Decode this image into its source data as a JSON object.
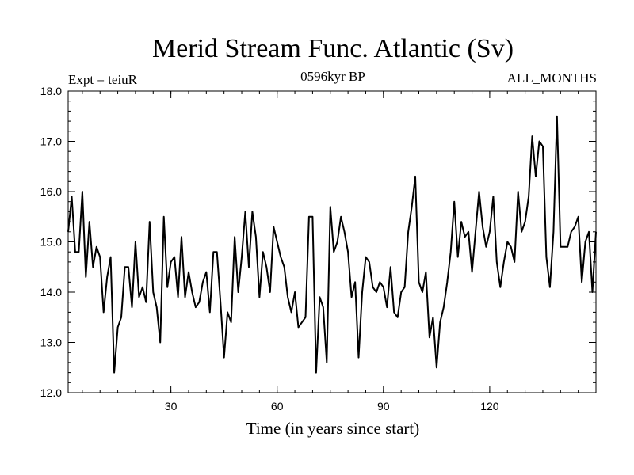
{
  "chart_data": {
    "type": "line",
    "title": "Merid Stream Func. Atlantic (Sv)",
    "subtitle_left": "Expt = teiuR",
    "subtitle_center": "0596kyr BP",
    "subtitle_right": "ALL_MONTHS",
    "xlabel": "Time (in years since start)",
    "ylabel": "",
    "xlim": [
      1,
      150
    ],
    "ylim": [
      12.0,
      18.0
    ],
    "x_ticks": [
      30,
      60,
      90,
      120
    ],
    "x_tick_labels": [
      "30",
      "60",
      "90",
      "120"
    ],
    "y_ticks": [
      12.0,
      13.0,
      14.0,
      15.0,
      16.0,
      17.0,
      18.0
    ],
    "y_tick_labels": [
      "12.0",
      "13.0",
      "14.0",
      "15.0",
      "16.0",
      "17.0",
      "18.0"
    ],
    "grid": false,
    "series": [
      {
        "name": "Merid Stream Func. Atlantic",
        "x_start": 1,
        "x_step": 1,
        "values": [
          15.2,
          15.9,
          14.8,
          14.8,
          16.0,
          14.3,
          15.4,
          14.5,
          14.9,
          14.7,
          13.6,
          14.3,
          14.7,
          12.4,
          13.3,
          13.5,
          14.5,
          14.5,
          13.7,
          15.0,
          13.9,
          14.1,
          13.8,
          15.4,
          14.0,
          13.7,
          13.0,
          15.5,
          14.1,
          14.6,
          14.7,
          13.9,
          15.1,
          13.9,
          14.4,
          14.0,
          13.7,
          13.8,
          14.2,
          14.4,
          13.6,
          14.8,
          14.8,
          13.8,
          12.7,
          13.6,
          13.4,
          15.1,
          14.0,
          14.7,
          15.6,
          14.5,
          15.6,
          15.1,
          13.9,
          14.8,
          14.5,
          14.0,
          15.3,
          15.0,
          14.7,
          14.5,
          13.9,
          13.6,
          14.0,
          13.3,
          13.4,
          13.5,
          15.5,
          15.5,
          12.4,
          13.9,
          13.7,
          12.6,
          15.7,
          14.8,
          15.0,
          15.5,
          15.2,
          14.8,
          13.9,
          14.2,
          12.7,
          14.0,
          14.7,
          14.6,
          14.1,
          14.0,
          14.2,
          14.1,
          13.7,
          14.5,
          13.6,
          13.5,
          14.0,
          14.1,
          15.2,
          15.7,
          16.3,
          14.2,
          14.0,
          14.4,
          13.1,
          13.5,
          12.5,
          13.4,
          13.7,
          14.2,
          14.8,
          15.8,
          14.7,
          15.4,
          15.1,
          15.2,
          14.4,
          15.2,
          16.0,
          15.3,
          14.9,
          15.2,
          15.9,
          14.6,
          14.1,
          14.6,
          15.0,
          14.9,
          14.6,
          16.0,
          15.2,
          15.4,
          15.9,
          17.1,
          16.3,
          17.0,
          16.9,
          14.7,
          14.1,
          15.2,
          17.5,
          14.9,
          14.9,
          14.9,
          15.2,
          15.3,
          15.5,
          14.2,
          15.0,
          15.2,
          14.0,
          15.2
        ]
      }
    ]
  }
}
